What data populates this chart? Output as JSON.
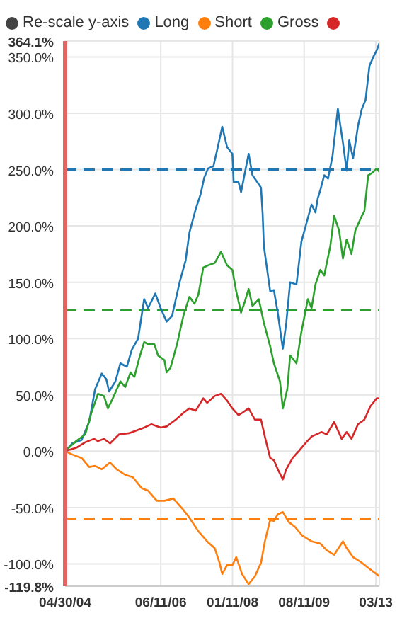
{
  "chart_data": {
    "type": "line",
    "annotations": [
      "Re-scale y-axis"
    ],
    "legend": "top",
    "grid": true,
    "ylim": [
      -119.8,
      364.1
    ],
    "yticks": [
      {
        "value": -119.8,
        "label": "-119.8%"
      },
      {
        "value": -100,
        "label": "-100.0%"
      },
      {
        "value": -50,
        "label": "-50.0%"
      },
      {
        "value": 0,
        "label": "0.0%"
      },
      {
        "value": 50,
        "label": "50.0%"
      },
      {
        "value": 100,
        "label": "100.0%"
      },
      {
        "value": 150,
        "label": "150.0%"
      },
      {
        "value": 200,
        "label": "200.0%"
      },
      {
        "value": 250,
        "label": "250.0%"
      },
      {
        "value": 300,
        "label": "300.0%"
      },
      {
        "value": 350,
        "label": "350.0%"
      },
      {
        "value": 364.1,
        "label": "364.1%"
      }
    ],
    "xlim": [
      "2004-04-30",
      "2011-04-10"
    ],
    "xticks": [
      {
        "value": "2004-04-30",
        "label": "04/30/04"
      },
      {
        "value": "2006-06-11",
        "label": "06/11/06"
      },
      {
        "value": "2008-01-11",
        "label": "01/11/08"
      },
      {
        "value": "2009-08-11",
        "label": "08/11/09"
      },
      {
        "value": "2011-03-13",
        "label": "03/13"
      }
    ],
    "ref_lines": [
      {
        "axis": "y",
        "value": 250,
        "color": "#1f77b4",
        "line_style": "dashed"
      },
      {
        "axis": "y",
        "value": 125,
        "color": "#2ca02c",
        "line_style": "dashed"
      },
      {
        "axis": "y",
        "value": -60,
        "color": "#ff7f0e",
        "line_style": "dashed"
      }
    ],
    "series": [
      {
        "name": "Long",
        "color": "#1f77b4",
        "x": [
          "2004-04-30",
          "2004-06-28",
          "2004-09-10",
          "2004-11-10",
          "2004-12-28",
          "2005-02-20",
          "2005-03-28",
          "2005-04-20",
          "2005-06-10",
          "2005-07-20",
          "2005-09-10",
          "2005-10-20",
          "2005-12-10",
          "2006-01-28",
          "2006-02-28",
          "2006-04-28",
          "2006-06-10",
          "2006-07-28",
          "2006-09-10",
          "2006-11-10",
          "2006-12-28",
          "2007-01-28",
          "2007-03-20",
          "2007-04-28",
          "2007-05-28",
          "2007-06-28",
          "2007-08-10",
          "2007-09-10",
          "2007-10-20",
          "2007-11-28",
          "2008-01-10",
          "2008-01-20",
          "2008-02-28",
          "2008-03-20",
          "2008-05-20",
          "2008-06-20",
          "2008-07-28",
          "2008-08-28",
          "2008-09-10",
          "2008-09-20",
          "2008-11-10",
          "2008-12-10",
          "2009-01-10",
          "2009-02-20",
          "2009-03-20",
          "2009-04-20",
          "2009-06-10",
          "2009-07-20",
          "2009-09-10",
          "2009-10-10",
          "2009-11-10",
          "2009-11-28",
          "2009-12-20",
          "2010-01-20",
          "2010-02-20",
          "2010-03-28",
          "2010-05-10",
          "2010-06-20",
          "2010-07-20",
          "2010-08-10",
          "2010-09-10",
          "2010-10-20",
          "2010-11-20",
          "2010-12-20",
          "2011-01-20",
          "2011-02-20",
          "2011-03-20",
          "2011-04-10"
        ],
        "values": [
          0,
          7,
          10,
          26,
          55,
          69,
          64,
          53,
          62,
          78,
          75,
          90,
          100,
          135,
          127,
          140,
          127,
          115,
          120,
          150,
          169,
          194,
          215,
          228,
          243,
          251,
          253,
          268,
          288,
          270,
          264,
          239,
          239,
          230,
          264,
          245,
          239,
          234,
          211,
          182,
          142,
          143,
          123,
          91,
          114,
          150,
          148,
          186,
          207,
          219,
          212,
          224,
          232,
          245,
          242,
          262,
          304,
          274,
          249,
          276,
          260,
          289,
          304,
          312,
          342,
          350,
          356,
          362
        ]
      },
      {
        "name": "Short",
        "color": "#ff7f0e",
        "x": [
          "2004-04-30",
          "2004-06-28",
          "2004-09-10",
          "2004-11-10",
          "2004-12-28",
          "2005-02-20",
          "2005-04-28",
          "2005-06-20",
          "2005-08-28",
          "2005-10-28",
          "2006-01-10",
          "2006-02-28",
          "2006-05-10",
          "2006-07-10",
          "2006-09-20",
          "2006-12-10",
          "2007-01-28",
          "2007-04-10",
          "2007-06-20",
          "2007-08-20",
          "2007-09-28",
          "2007-10-20",
          "2007-11-28",
          "2008-01-10",
          "2008-02-10",
          "2008-03-28",
          "2008-05-20",
          "2008-07-10",
          "2008-08-28",
          "2008-09-28",
          "2008-11-10",
          "2008-12-10",
          "2009-01-10",
          "2009-02-20",
          "2009-04-10",
          "2009-05-28",
          "2009-07-28",
          "2009-10-10",
          "2009-12-20",
          "2010-02-10",
          "2010-04-10",
          "2010-06-20",
          "2010-07-20",
          "2010-09-10",
          "2010-11-20",
          "2011-01-28",
          "2011-04-10"
        ],
        "values": [
          0,
          -3,
          -6,
          -14,
          -13,
          -16,
          -10,
          -16,
          -21,
          -23,
          -33,
          -35,
          -44,
          -44,
          -42,
          -52,
          -59,
          -71,
          -80,
          -86,
          -99,
          -109,
          -101,
          -101,
          -94,
          -109,
          -118,
          -111,
          -99,
          -80,
          -61,
          -62,
          -56,
          -54,
          -63,
          -67,
          -75,
          -80,
          -82,
          -88,
          -92,
          -80,
          -86,
          -94,
          -99,
          -105,
          -111
        ]
      },
      {
        "name": "Gross",
        "color": "#2ca02c",
        "x": [
          "2004-04-30",
          "2004-07-28",
          "2004-10-10",
          "2004-11-28",
          "2005-01-20",
          "2005-03-10",
          "2005-04-10",
          "2005-05-20",
          "2005-07-20",
          "2005-08-28",
          "2005-10-10",
          "2005-11-10",
          "2005-12-20",
          "2006-01-28",
          "2006-02-28",
          "2006-04-20",
          "2006-05-20",
          "2006-07-10",
          "2006-07-28",
          "2006-08-28",
          "2006-10-20",
          "2006-12-10",
          "2007-01-28",
          "2007-03-10",
          "2007-04-10",
          "2007-05-20",
          "2007-06-28",
          "2007-08-20",
          "2007-10-10",
          "2007-11-28",
          "2008-01-10",
          "2008-02-10",
          "2008-03-20",
          "2008-04-20",
          "2008-05-20",
          "2008-06-20",
          "2008-08-10",
          "2008-09-20",
          "2008-11-10",
          "2008-12-10",
          "2009-01-28",
          "2009-02-20",
          "2009-03-28",
          "2009-04-20",
          "2009-06-10",
          "2009-07-20",
          "2009-09-10",
          "2009-10-10",
          "2009-11-10",
          "2009-12-20",
          "2010-01-20",
          "2010-03-10",
          "2010-04-10",
          "2010-05-20",
          "2010-06-20",
          "2010-07-20",
          "2010-08-28",
          "2010-09-28",
          "2010-11-20",
          "2010-12-10",
          "2011-01-10",
          "2011-02-10",
          "2011-03-20",
          "2011-04-10"
        ],
        "values": [
          0,
          9,
          15,
          34,
          51,
          49,
          38,
          47,
          62,
          57,
          70,
          66,
          83,
          97,
          95,
          95,
          85,
          81,
          70,
          74,
          95,
          120,
          137,
          131,
          139,
          163,
          165,
          167,
          177,
          165,
          161,
          142,
          123,
          133,
          144,
          129,
          135,
          114,
          93,
          78,
          62,
          38,
          55,
          85,
          78,
          106,
          135,
          127,
          148,
          161,
          156,
          182,
          209,
          196,
          171,
          188,
          175,
          196,
          209,
          213,
          245,
          247,
          251,
          248
        ]
      },
      {
        "color": "#d62728",
        "x": [
          "2004-04-30",
          "2004-07-28",
          "2004-10-10",
          "2004-12-20",
          "2005-01-20",
          "2005-03-10",
          "2005-04-28",
          "2005-07-10",
          "2005-09-28",
          "2006-01-28",
          "2006-03-28",
          "2006-06-10",
          "2006-07-28",
          "2006-10-10",
          "2006-12-10",
          "2007-01-28",
          "2007-03-20",
          "2007-05-20",
          "2007-06-20",
          "2007-08-20",
          "2007-10-10",
          "2007-11-28",
          "2008-01-10",
          "2008-02-28",
          "2008-03-28",
          "2008-05-20",
          "2008-07-10",
          "2008-08-28",
          "2008-09-28",
          "2008-11-10",
          "2008-12-10",
          "2009-01-10",
          "2009-02-20",
          "2009-03-20",
          "2009-05-10",
          "2009-06-28",
          "2009-08-20",
          "2009-10-10",
          "2009-12-28",
          "2010-02-10",
          "2010-04-10",
          "2010-06-10",
          "2010-07-20",
          "2010-08-28",
          "2010-10-20",
          "2010-12-10",
          "2011-01-28",
          "2011-03-20",
          "2011-04-10"
        ],
        "values": [
          0,
          3,
          8,
          11,
          9,
          11,
          7,
          15,
          16,
          21,
          24,
          21,
          22,
          28,
          34,
          38,
          36,
          47,
          43,
          49,
          51,
          45,
          38,
          32,
          34,
          38,
          28,
          28,
          13,
          -6,
          -8,
          -16,
          -25,
          -16,
          -6,
          0,
          7,
          13,
          17,
          15,
          26,
          11,
          17,
          11,
          24,
          28,
          40,
          47,
          47
        ]
      }
    ]
  }
}
